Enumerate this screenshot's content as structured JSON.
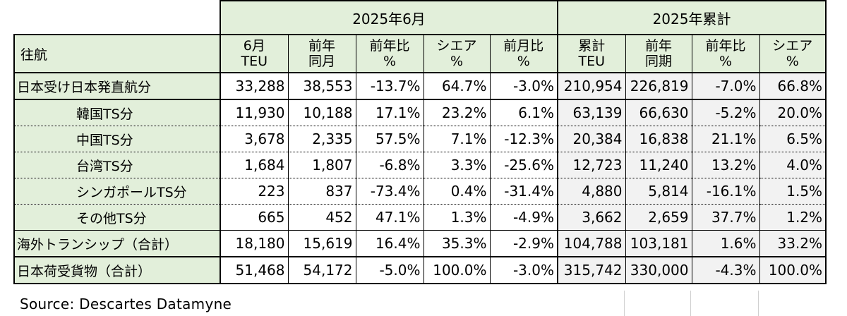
{
  "header": {
    "period_june": "2025年6月",
    "period_cumulative": "2025年累計",
    "row_header": "往航",
    "columns": [
      [
        "6月",
        "TEU"
      ],
      [
        "前年",
        "同月"
      ],
      [
        "前年比",
        "%"
      ],
      [
        "シエア",
        "%"
      ],
      [
        "前月比",
        "%"
      ],
      [
        "累計",
        "TEU"
      ],
      [
        "前年",
        "同期"
      ],
      [
        "前年比",
        "%"
      ],
      [
        "シエア",
        "%"
      ]
    ]
  },
  "rows": [
    {
      "label": "日本受け日本発直航分",
      "values": [
        "33,288",
        "38,553",
        "-13.7%",
        "64.7%",
        "-3.0%",
        "210,954",
        "226,819",
        "-7.0%",
        "66.8%"
      ]
    },
    {
      "label": "韓国TS分",
      "values": [
        "11,930",
        "10,188",
        "17.1%",
        "23.2%",
        "6.1%",
        "63,139",
        "66,630",
        "-5.2%",
        "20.0%"
      ]
    },
    {
      "label": "中国TS分",
      "values": [
        "3,678",
        "2,335",
        "57.5%",
        "7.1%",
        "-12.3%",
        "20,384",
        "16,838",
        "21.1%",
        "6.5%"
      ]
    },
    {
      "label": "台湾TS分",
      "values": [
        "1,684",
        "1,807",
        "-6.8%",
        "3.3%",
        "-25.6%",
        "12,723",
        "11,240",
        "13.2%",
        "4.0%"
      ]
    },
    {
      "label": "シンガポールTS分",
      "values": [
        "223",
        "837",
        "-73.4%",
        "0.4%",
        "-31.4%",
        "4,880",
        "5,814",
        "-16.1%",
        "1.5%"
      ]
    },
    {
      "label": "その他TS分",
      "values": [
        "665",
        "452",
        "47.1%",
        "1.3%",
        "-4.9%",
        "3,662",
        "2,659",
        "37.7%",
        "1.2%"
      ]
    },
    {
      "label": "海外トランシップ（合計）",
      "values": [
        "18,180",
        "15,619",
        "16.4%",
        "35.3%",
        "-2.9%",
        "104,788",
        "103,181",
        "1.6%",
        "33.2%"
      ]
    },
    {
      "label": "日本荷受貨物（合計）",
      "values": [
        "51,468",
        "54,172",
        "-5.0%",
        "100.0%",
        "-3.0%",
        "315,742",
        "330,000",
        "-4.3%",
        "100.0%"
      ]
    }
  ],
  "source": "Source:  Descartes Datamyne"
}
